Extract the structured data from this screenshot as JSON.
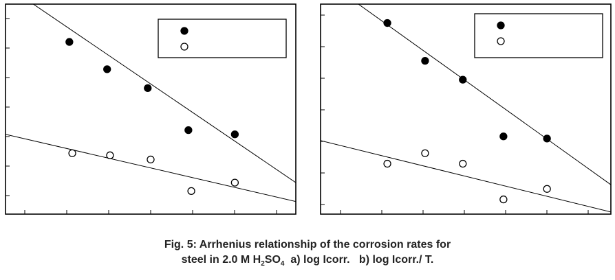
{
  "caption": {
    "line1": "Fig. 5: Arrhenius relationship of the corrosion rates for",
    "line2_prefix": "steel in 2.0 M H",
    "sub1": "2",
    "mid": "SO",
    "sub2": "4",
    "line2_suffix": "  a) log Icorr.   b) log Icorr./ T."
  },
  "chart_data": [
    {
      "type": "scatter",
      "panel": "a",
      "grid": false,
      "legend_position": "top-right",
      "xlim": [
        0,
        100
      ],
      "ylim": [
        0,
        100
      ],
      "series": [
        {
          "marker": "filled-circle",
          "color": "#000000",
          "points": [
            [
              22,
              82
            ],
            [
              35,
              69
            ],
            [
              49,
              60
            ],
            [
              63,
              40
            ],
            [
              79,
              38
            ]
          ],
          "fit_line": [
            [
              0,
              109
            ],
            [
              100,
              15
            ]
          ]
        },
        {
          "marker": "open-circle",
          "color": "#000000",
          "points": [
            [
              23,
              29
            ],
            [
              36,
              28
            ],
            [
              50,
              26
            ],
            [
              64,
              11
            ],
            [
              79,
              15
            ]
          ],
          "fit_line": [
            [
              0,
              38
            ],
            [
              100,
              6
            ]
          ]
        }
      ]
    },
    {
      "type": "scatter",
      "panel": "b",
      "grid": false,
      "legend_position": "top-right",
      "xlim": [
        0,
        100
      ],
      "ylim": [
        0,
        100
      ],
      "series": [
        {
          "marker": "filled-circle",
          "color": "#000000",
          "points": [
            [
              23,
              91
            ],
            [
              36,
              73
            ],
            [
              49,
              64
            ],
            [
              63,
              37
            ],
            [
              78,
              36
            ]
          ],
          "fit_line": [
            [
              10,
              103
            ],
            [
              100,
              14
            ]
          ]
        },
        {
          "marker": "open-circle",
          "color": "#000000",
          "points": [
            [
              23,
              24
            ],
            [
              36,
              29
            ],
            [
              49,
              24
            ],
            [
              63,
              7
            ],
            [
              78,
              12
            ]
          ],
          "fit_line": [
            [
              0,
              35
            ],
            [
              100,
              1
            ]
          ]
        }
      ]
    }
  ]
}
